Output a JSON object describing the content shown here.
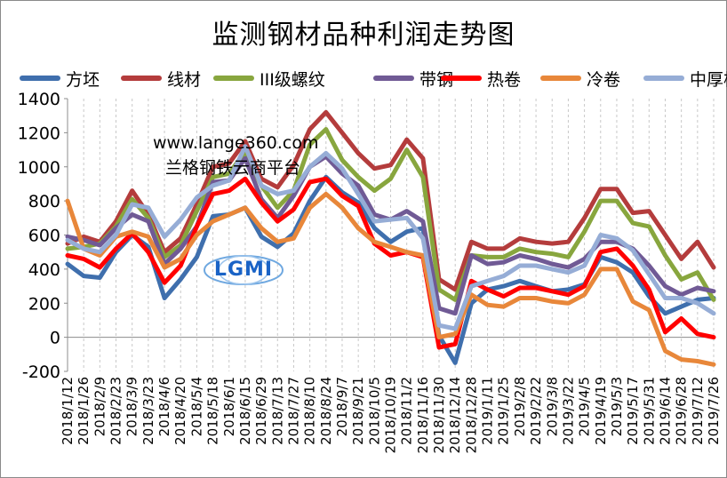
{
  "chart_data": {
    "type": "line",
    "title": "监测钢材品种利润走势图",
    "xlabel": "",
    "ylabel": "",
    "ylim": [
      -200,
      1400
    ],
    "y_ticks": [
      -200,
      0,
      200,
      400,
      600,
      800,
      1000,
      1200,
      1400
    ],
    "grid": "vertical dashed",
    "legend_position": "top",
    "x_labels": [
      "2018/1/12",
      "2018/1/26",
      "2018/2/9",
      "2018/2/23",
      "2018/3/9",
      "2018/3/23",
      "2018/4/6",
      "2018/4/20",
      "2018/5/4",
      "2018/5/18",
      "2018/6/1",
      "2018/6/15",
      "2018/6/29",
      "2018/7/13",
      "2018/7/27",
      "2018/8/10",
      "2018/8/24",
      "2018/9/7",
      "2018/9/21",
      "2018/10/5",
      "2018/10/19",
      "2018/11/2",
      "2018/11/16",
      "2018/11/30",
      "2018/12/14",
      "2018/12/28",
      "2019/1/11",
      "2019/1/25",
      "2019/2/8",
      "2019/2/22",
      "2019/3/8",
      "2019/3/22",
      "2019/4/5",
      "2019/4/19",
      "2019/5/3",
      "2019/5/17",
      "2019/5/31",
      "2019/6/14",
      "2019/6/28",
      "2019/7/12",
      "2019/7/26"
    ],
    "series": [
      {
        "name": "方坯",
        "color": "#3f6fad",
        "values": [
          430,
          360,
          350,
          500,
          600,
          530,
          230,
          340,
          470,
          710,
          720,
          760,
          590,
          530,
          610,
          800,
          940,
          850,
          790,
          640,
          560,
          620,
          640,
          10,
          -150,
          200,
          280,
          300,
          330,
          300,
          270,
          280,
          310,
          470,
          440,
          380,
          240,
          140,
          180,
          220,
          230
        ]
      },
      {
        "name": "线材",
        "color": "#b43c3c",
        "values": [
          550,
          590,
          560,
          680,
          860,
          720,
          500,
          580,
          780,
          1000,
          1020,
          1150,
          930,
          880,
          1010,
          1220,
          1320,
          1200,
          1080,
          990,
          1010,
          1160,
          1050,
          340,
          280,
          560,
          520,
          520,
          580,
          560,
          550,
          560,
          700,
          870,
          870,
          730,
          740,
          600,
          460,
          560,
          410
        ]
      },
      {
        "name": "III级螺纹",
        "color": "#88a63e",
        "values": [
          520,
          530,
          550,
          650,
          810,
          700,
          470,
          540,
          740,
          940,
          960,
          1090,
          890,
          760,
          860,
          1130,
          1220,
          1040,
          940,
          860,
          930,
          1100,
          940,
          280,
          220,
          480,
          470,
          470,
          520,
          500,
          490,
          470,
          620,
          800,
          800,
          670,
          650,
          480,
          340,
          380,
          220
        ]
      },
      {
        "name": "带钢",
        "color": "#705a95",
        "values": [
          590,
          570,
          540,
          640,
          720,
          680,
          430,
          520,
          650,
          910,
          920,
          1050,
          810,
          700,
          830,
          1000,
          1060,
          960,
          890,
          720,
          690,
          740,
          680,
          170,
          140,
          480,
          430,
          440,
          480,
          460,
          430,
          410,
          460,
          560,
          560,
          520,
          420,
          300,
          250,
          290,
          270
        ]
      },
      {
        "name": "热卷",
        "color": "#ff0000",
        "values": [
          480,
          460,
          410,
          520,
          610,
          500,
          320,
          420,
          650,
          840,
          860,
          930,
          790,
          680,
          750,
          910,
          930,
          830,
          770,
          550,
          480,
          500,
          470,
          -60,
          -40,
          330,
          280,
          240,
          290,
          290,
          270,
          250,
          300,
          500,
          520,
          420,
          280,
          30,
          110,
          20,
          0
        ]
      },
      {
        "name": "冷卷",
        "color": "#e8873a",
        "values": [
          800,
          520,
          480,
          590,
          620,
          590,
          410,
          460,
          600,
          680,
          720,
          760,
          640,
          560,
          580,
          760,
          840,
          760,
          640,
          560,
          530,
          500,
          480,
          0,
          20,
          250,
          190,
          180,
          230,
          230,
          210,
          200,
          250,
          400,
          400,
          210,
          160,
          -80,
          -130,
          -140,
          -160
        ]
      },
      {
        "name": "中厚板",
        "color": "#96add6",
        "values": [
          570,
          520,
          500,
          600,
          780,
          760,
          590,
          690,
          820,
          890,
          920,
          1120,
          890,
          840,
          860,
          1000,
          1080,
          990,
          840,
          680,
          690,
          700,
          580,
          70,
          50,
          300,
          330,
          360,
          420,
          420,
          400,
          380,
          420,
          600,
          580,
          510,
          370,
          230,
          230,
          200,
          140
        ]
      }
    ]
  },
  "watermark": {
    "url": "www.lange360.com",
    "name": "兰格钢铁云商平台"
  },
  "logo": {
    "text": "LGMI",
    "color": "#1a63c6"
  }
}
